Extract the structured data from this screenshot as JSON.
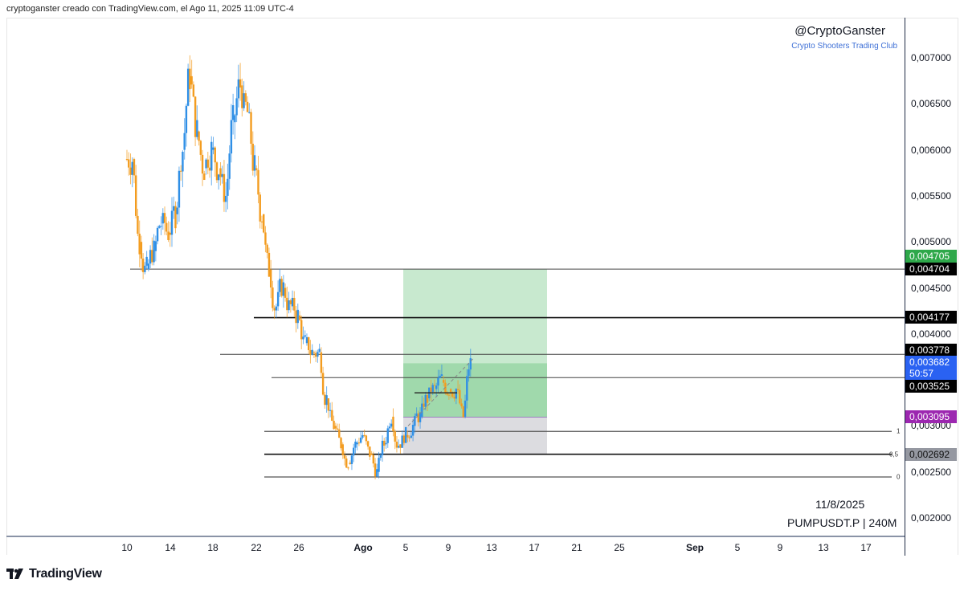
{
  "header": {
    "text": "cryptoganster creado con TradingView.com, el Ago 11, 2025 11:09 UTC-4"
  },
  "watermark": {
    "handle": "@CryptoGanster",
    "club": "Crypto Shooters Trading Club"
  },
  "info": {
    "date": "11/8/2025",
    "symbol": "PUMPUSDT.P | 240M"
  },
  "footer": {
    "logo": "TradingView"
  },
  "colors": {
    "up": "#2f8fe6",
    "down": "#f39c1f",
    "tp_zone": "#c8e9cf",
    "tp_zone_dark": "#a0d9ac",
    "sl_zone": "#dcdce0",
    "green_badge": "#2ea84a",
    "blue_badge": "#2a62f2",
    "purple_badge": "#9c27b0",
    "gray_badge": "#9598a1"
  },
  "chart_data": {
    "type": "candlestick",
    "title": "PUMPUSDT.P | 240M",
    "xlabel": "",
    "ylabel": "",
    "x_ticks": [
      "10",
      "14",
      "18",
      "22",
      "26",
      "Ago",
      "5",
      "9",
      "13",
      "17",
      "21",
      "25",
      "Sep",
      "5",
      "9",
      "13",
      "17"
    ],
    "y_ticks": [
      "0,007000",
      "0,006500",
      "0,006000",
      "0,005500",
      "0,005000",
      "0,004500",
      "0,004000",
      "0,003500",
      "0,003000",
      "0,002500",
      "0,002000"
    ],
    "ylim": [
      0.00178,
      0.0074
    ],
    "horizontal_levels": [
      0.004704,
      0.004177,
      0.003778,
      0.003525
    ],
    "fib_levels": [
      {
        "label": "1",
        "value": 0.00294
      },
      {
        "label": "0,5",
        "value": 0.002692
      },
      {
        "label": "0",
        "value": 0.002445
      }
    ],
    "position": {
      "entry": 0.003095,
      "target": 0.004705,
      "stop": 0.002692
    },
    "price_badges": [
      {
        "value": "0,004705",
        "color": "#2ea84a"
      },
      {
        "value": "0,004704",
        "color": "#000000"
      },
      {
        "value": "0,004177",
        "color": "#000000"
      },
      {
        "value": "0,003778",
        "color": "#000000"
      },
      {
        "value": "0,003682",
        "sub": "50:57",
        "color": "#2a62f2"
      },
      {
        "value": "0,003525",
        "color": "#000000"
      },
      {
        "value": "0,003095",
        "color": "#9c27b0"
      },
      {
        "value": "0,002692",
        "color": "#9598a1"
      }
    ],
    "series_close_approx": [
      0.0059,
      0.005,
      0.0047,
      0.0049,
      0.0052,
      0.0051,
      0.0053,
      0.006,
      0.0068,
      0.0062,
      0.0058,
      0.006,
      0.0058,
      0.0055,
      0.0063,
      0.0067,
      0.0064,
      0.0058,
      0.0053,
      0.0047,
      0.0043,
      0.0045,
      0.0043,
      0.0042,
      0.0039,
      0.0038,
      0.0038,
      0.0033,
      0.003,
      0.0028,
      0.0026,
      0.0028,
      0.0029,
      0.0027,
      0.0025,
      0.0028,
      0.0031,
      0.0028,
      0.0029,
      0.003,
      0.0031,
      0.0033,
      0.0034,
      0.0035,
      0.0034,
      0.0034,
      0.0031,
      0.00368
    ]
  }
}
